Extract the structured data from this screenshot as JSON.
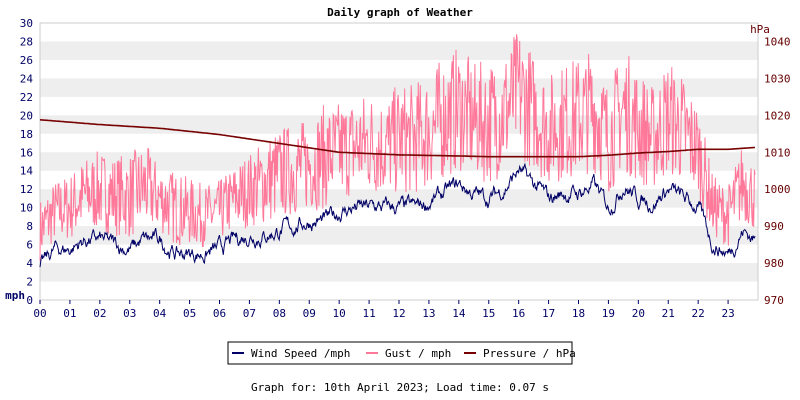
{
  "chart_data": {
    "type": "line",
    "title": "Daily graph of Weather",
    "left_axis": {
      "unit_label": "mph",
      "ticks": [
        0,
        2,
        4,
        6,
        8,
        10,
        12,
        14,
        16,
        18,
        20,
        22,
        24,
        26,
        28,
        30
      ],
      "range": [
        0,
        30
      ]
    },
    "right_axis": {
      "unit_label": "hPa",
      "ticks": [
        970,
        980,
        990,
        1000,
        1010,
        1020,
        1030,
        1040
      ],
      "range": [
        970,
        1045
      ]
    },
    "x_axis": {
      "tick_labels": [
        "00",
        "01",
        "02",
        "03",
        "04",
        "05",
        "06",
        "07",
        "08",
        "09",
        "10",
        "11",
        "12",
        "13",
        "14",
        "15",
        "16",
        "17",
        "18",
        "19",
        "20",
        "21",
        "22",
        "23"
      ],
      "range_hours": [
        0,
        24
      ]
    },
    "grid": "horizontal bands",
    "colors": {
      "wind": "#000066",
      "gust": "#ff7799",
      "pressure": "#770000",
      "axis_text": "#000066",
      "right_axis_text": "#660000",
      "band": "#eeeeee"
    },
    "series": [
      {
        "name": "Wind Speed /mph",
        "axis": "left",
        "hours": [
          0,
          0.5,
          1,
          1.5,
          2,
          2.5,
          3,
          3.5,
          4,
          4.5,
          5,
          5.5,
          6,
          6.5,
          7,
          7.5,
          8,
          8.5,
          9,
          9.5,
          10,
          10.5,
          11,
          11.5,
          12,
          12.5,
          13,
          13.5,
          14,
          14.5,
          15,
          15.5,
          16,
          16.5,
          17,
          17.5,
          18,
          18.5,
          19,
          19.5,
          20,
          20.5,
          21,
          21.5,
          22,
          22.5,
          23,
          23.5,
          23.9
        ],
        "values": [
          3.5,
          5.5,
          5.5,
          6.5,
          6.5,
          6.0,
          5.5,
          6.5,
          6.5,
          5.0,
          5.0,
          5.0,
          5.5,
          6.5,
          7.0,
          7.0,
          7.5,
          8.0,
          8.5,
          8.5,
          9.5,
          10.0,
          10.0,
          10.0,
          10.0,
          10.0,
          10.5,
          11.5,
          12.5,
          11.5,
          11.0,
          12.0,
          14.0,
          12.5,
          11.0,
          11.5,
          11.5,
          12.5,
          10.0,
          12.5,
          11.0,
          10.5,
          12.0,
          11.0,
          10.0,
          6.0,
          5.0,
          7.5,
          6.5
        ]
      },
      {
        "name": "Gust / mph",
        "axis": "left",
        "hours": [
          0,
          0.5,
          1,
          1.5,
          2,
          2.5,
          3,
          3.5,
          4,
          4.5,
          5,
          5.5,
          6,
          6.5,
          7,
          7.5,
          8,
          8.5,
          9,
          9.5,
          10,
          10.5,
          11,
          11.5,
          12,
          12.5,
          13,
          13.5,
          14,
          14.5,
          15,
          15.5,
          16,
          16.5,
          17,
          17.5,
          18,
          18.5,
          19,
          19.5,
          20,
          20.5,
          21,
          21.5,
          22,
          22.5,
          23,
          23.5,
          23.9
        ],
        "values": [
          8.5,
          10.5,
          11.0,
          12.5,
          13.0,
          12.5,
          12.5,
          13.5,
          12.0,
          11.0,
          10.5,
          10.0,
          10.5,
          12.0,
          13.0,
          14.0,
          15.0,
          15.5,
          16.0,
          17.0,
          17.5,
          18.0,
          18.5,
          18.0,
          19.0,
          19.0,
          20.0,
          21.5,
          22.5,
          21.0,
          21.0,
          22.0,
          24.5,
          22.0,
          20.0,
          21.0,
          21.5,
          22.5,
          19.0,
          22.5,
          20.5,
          19.0,
          21.5,
          20.0,
          17.5,
          11.0,
          10.0,
          14.0,
          12.0
        ]
      },
      {
        "name": "Pressure / hPa",
        "axis": "right",
        "hours": [
          0,
          2,
          4,
          6,
          8,
          10,
          12,
          14,
          15,
          16,
          17,
          18,
          19,
          20,
          21,
          22,
          23,
          23.9
        ],
        "values": [
          1018.8,
          1017.5,
          1016.5,
          1014.8,
          1012.4,
          1010.0,
          1009.3,
          1009.0,
          1008.8,
          1008.8,
          1008.8,
          1008.8,
          1009.2,
          1009.8,
          1010.2,
          1010.8,
          1010.8,
          1011.3
        ]
      }
    ],
    "legend_placement": "bottom-center"
  },
  "footer": {
    "caption": "Graph for: 10th April 2023; Load time: 0.07 s"
  }
}
